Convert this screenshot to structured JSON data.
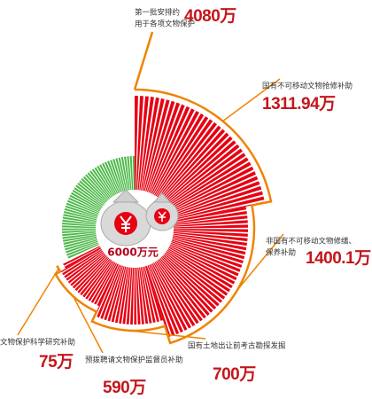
{
  "chart_data": {
    "type": "radial-bar",
    "total": {
      "value": 6000,
      "label": "6000万元"
    },
    "allocated": {
      "value": 4080,
      "label": [
        "第一批安排约",
        "用于各项文物保护"
      ],
      "value_label": "4080万"
    },
    "categories": [
      [
        "国有不可移动文物抢修补助"
      ],
      [
        "非国有不可移动文物修缮、",
        "保养补助"
      ],
      [
        "国有土地出让前考古勘探发掘"
      ],
      [
        "预拨聘请文物保护监督员补助"
      ],
      [
        "文物保护科学研究补助"
      ]
    ],
    "values": [
      1311.94,
      1400.1,
      700,
      590,
      75
    ],
    "value_labels": [
      "1311.94万",
      "1400.1万",
      "700万",
      "590万",
      "75万"
    ],
    "color": "#e60012",
    "remainder_color": "#4cb848",
    "outline_color": "#f08300"
  }
}
